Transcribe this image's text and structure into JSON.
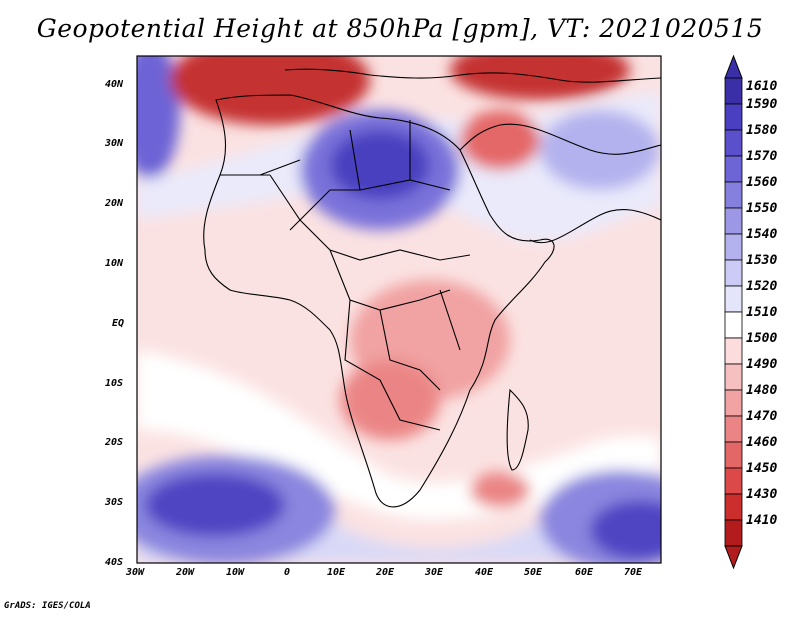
{
  "title": "Geopotential Height at 850hPa [gpm], VT: 2021020515",
  "credit": "GrADS: IGES/COLA",
  "map": {
    "lon_ticks": [
      "30W",
      "20W",
      "10W",
      "0",
      "10E",
      "20E",
      "30E",
      "40E",
      "50E",
      "60E",
      "70E"
    ],
    "lat_ticks": [
      "40N",
      "30N",
      "20N",
      "10N",
      "EQ",
      "10S",
      "20S",
      "30S",
      "40S"
    ]
  },
  "colorbar": {
    "levels": [
      "1610",
      "1590",
      "1580",
      "1570",
      "1560",
      "1550",
      "1540",
      "1530",
      "1520",
      "1510",
      "1500",
      "1490",
      "1480",
      "1470",
      "1460",
      "1450",
      "1430",
      "1410"
    ],
    "colors": [
      "#3a2fa6",
      "#4a3fc0",
      "#5a50cc",
      "#6d64d6",
      "#8580de",
      "#9c98e6",
      "#b4b2ee",
      "#cccbf5",
      "#e4e4fb",
      "#ffffff",
      "#fcdcdc",
      "#f7c0c0",
      "#f1a2a2",
      "#eb8585",
      "#e46767",
      "#dc4949",
      "#cc2d2d",
      "#b31c1c"
    ]
  }
}
